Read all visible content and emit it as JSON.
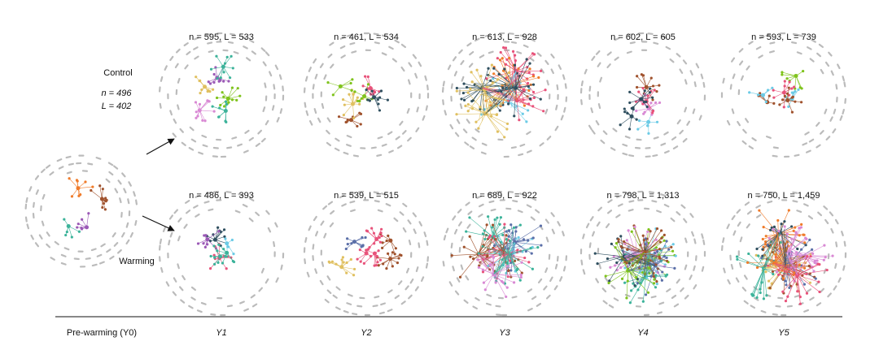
{
  "left": {
    "control_label": "Control",
    "warming_label": "Warming",
    "n": "n = 496",
    "L": "L = 402"
  },
  "panels": {
    "control": [
      "n = 595, L = 533",
      "n = 461, L = 534",
      "n = 613, L = 928",
      "n = 602, L = 605",
      "n = 593, L = 739"
    ],
    "warming": [
      "n = 486, L = 393",
      "n = 539, L = 515",
      "n = 689, L = 922",
      "n = 798, L = 1,313",
      "n = 750, L = 1,459"
    ]
  },
  "axis": {
    "baseline_label": "Pre-warming (Y0)",
    "years": [
      "Y1",
      "Y2",
      "Y3",
      "Y4",
      "Y5"
    ]
  }
}
